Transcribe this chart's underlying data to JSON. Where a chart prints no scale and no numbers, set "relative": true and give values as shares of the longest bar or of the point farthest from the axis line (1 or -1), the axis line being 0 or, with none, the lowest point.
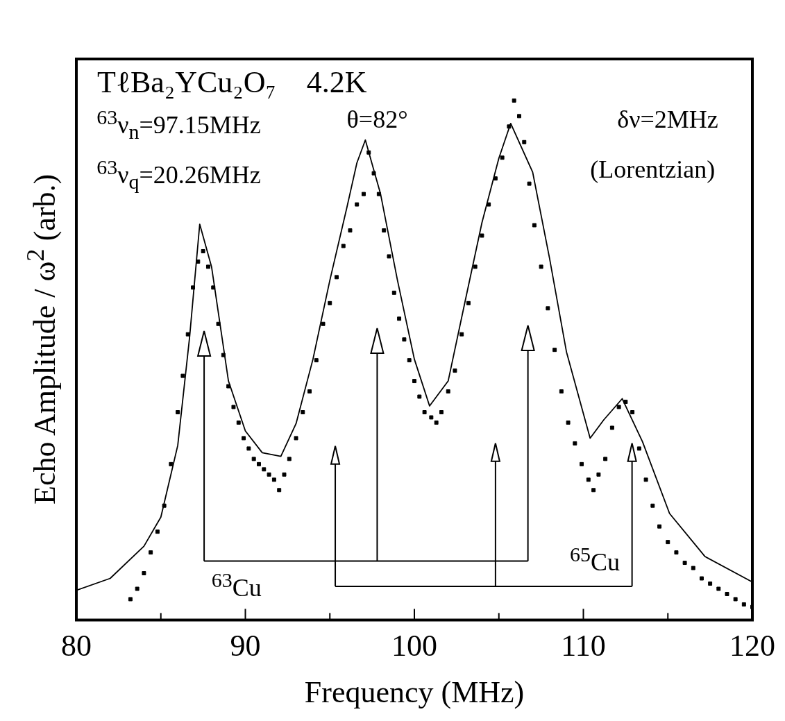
{
  "chart_data": {
    "type": "scatter",
    "title": "TℓBa₂YCu₂O₇    4.2K",
    "xlabel": "Frequency (MHz)",
    "ylabel": "Echo Amplitude / ω$^{2}$ (arb.)",
    "relative": true,
    "xlim": [
      80,
      120
    ],
    "xticks": [
      80,
      {
        "value": 85,
        "label": null
      },
      90,
      {
        "value": 95,
        "label": null
      },
      100,
      {
        "value": 105,
        "label": null
      },
      110,
      {
        "value": 115,
        "label": null
      },
      120
    ],
    "grid": false,
    "legend": false,
    "annotations": [
      "$^{63}$ν$_{n}$=97.15MHz",
      "$^{63}$ν$_{q}$=20.26MHz",
      "θ=82°",
      "δν=2MHz",
      "(Lorentzian)",
      "$^{63}$Cu",
      "$^{65}$Cu"
    ],
    "series": [
      {
        "marker": "square",
        "color": "#000000",
        "x": [
          83.2,
          83.6,
          84,
          84.4,
          84.8,
          85.2,
          85.6,
          86,
          86.3,
          86.6,
          86.9,
          87.2,
          87.5,
          87.8,
          88.1,
          88.4,
          88.7,
          89,
          89.3,
          89.6,
          89.9,
          90.2,
          90.5,
          90.8,
          91.1,
          91.4,
          91.7,
          92,
          92.3,
          92.6,
          93,
          93.4,
          93.8,
          94.2,
          94.6,
          95,
          95.4,
          95.8,
          96.2,
          96.6,
          97,
          97.3,
          97.6,
          97.9,
          98.2,
          98.5,
          98.8,
          99.1,
          99.4,
          99.7,
          100,
          100.3,
          100.6,
          101,
          101.3,
          101.6,
          102,
          102.4,
          102.8,
          103.2,
          103.6,
          104,
          104.4,
          104.8,
          105.2,
          105.6,
          105.9,
          106.2,
          106.5,
          106.8,
          107.1,
          107.5,
          107.9,
          108.3,
          108.7,
          109.1,
          109.5,
          109.9,
          110.3,
          110.6,
          110.9,
          111.3,
          111.7,
          112.1,
          112.5,
          112.9,
          113.3,
          113.7,
          114.1,
          114.5,
          115,
          115.5,
          116,
          116.5,
          117,
          117.5,
          118,
          118.5,
          119,
          119.5,
          120
        ],
        "values": [
          0.04,
          0.06,
          0.09,
          0.13,
          0.17,
          0.22,
          0.3,
          0.4,
          0.47,
          0.55,
          0.64,
          0.69,
          0.71,
          0.68,
          0.64,
          0.57,
          0.51,
          0.45,
          0.41,
          0.38,
          0.35,
          0.33,
          0.31,
          0.3,
          0.29,
          0.28,
          0.27,
          0.25,
          0.28,
          0.31,
          0.35,
          0.4,
          0.44,
          0.5,
          0.57,
          0.61,
          0.66,
          0.72,
          0.75,
          0.8,
          0.82,
          0.9,
          0.86,
          0.82,
          0.75,
          0.7,
          0.63,
          0.58,
          0.54,
          0.5,
          0.46,
          0.43,
          0.4,
          0.39,
          0.38,
          0.4,
          0.44,
          0.48,
          0.55,
          0.61,
          0.68,
          0.74,
          0.8,
          0.85,
          0.89,
          0.95,
          1,
          0.97,
          0.92,
          0.84,
          0.76,
          0.68,
          0.6,
          0.52,
          0.44,
          0.38,
          0.34,
          0.3,
          0.27,
          0.25,
          0.28,
          0.31,
          0.37,
          0.41,
          0.42,
          0.4,
          0.33,
          0.27,
          0.22,
          0.18,
          0.15,
          0.13,
          0.11,
          0.1,
          0.08,
          0.07,
          0.06,
          0.05,
          0.04,
          0.03,
          0.025
        ]
      },
      {
        "type": "line",
        "marker": "none",
        "line_style": "solid",
        "color": "#000000",
        "x": [
          80,
          82,
          84,
          85,
          86,
          86.7,
          87.3,
          88,
          89,
          90,
          91,
          92.1,
          93,
          94,
          95,
          96,
          96.6,
          97.1,
          98,
          99,
          100,
          100.9,
          102,
          103,
          104,
          105,
          105.7,
          107,
          108,
          109,
          110.4,
          111.2,
          112.3,
          113.5,
          115.1,
          117.2,
          120
        ],
        "values": [
          0.057,
          0.08,
          0.142,
          0.198,
          0.336,
          0.544,
          0.762,
          0.68,
          0.46,
          0.364,
          0.322,
          0.315,
          0.378,
          0.502,
          0.654,
          0.793,
          0.88,
          0.924,
          0.82,
          0.654,
          0.502,
          0.412,
          0.46,
          0.613,
          0.765,
          0.889,
          0.956,
          0.862,
          0.696,
          0.516,
          0.35,
          0.385,
          0.426,
          0.343,
          0.205,
          0.122,
          0.073
        ]
      }
    ]
  }
}
